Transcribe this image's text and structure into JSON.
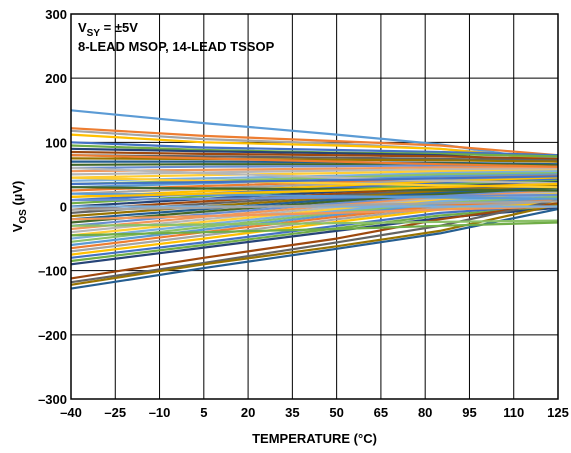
{
  "chart_data": {
    "type": "line",
    "xlabel": "TEMPERATURE (°C)",
    "ylabel": "VOS (µV)",
    "ylabel_parts": {
      "base": "V",
      "sub": "OS",
      "rest": " (µV)"
    },
    "annotation": {
      "line1": {
        "base": "V",
        "sub": "SY",
        "rest": " = ±5V"
      },
      "line2": "8-LEAD MSOP, 14-LEAD TSSOP"
    },
    "x_ticks": [
      -40,
      -25,
      -10,
      5,
      20,
      35,
      50,
      65,
      80,
      95,
      110,
      125
    ],
    "y_ticks": [
      -300,
      -200,
      -100,
      0,
      100,
      200,
      300
    ],
    "x_tick_labels": [
      "–40",
      "–25",
      "–10",
      "5",
      "20",
      "35",
      "50",
      "65",
      "80",
      "95",
      "110",
      "125"
    ],
    "y_tick_labels": [
      "–300",
      "–200",
      "–100",
      "0",
      "100",
      "200",
      "300"
    ],
    "xlim": [
      -40,
      125
    ],
    "ylim": [
      -300,
      300
    ],
    "grid": true,
    "x": [
      -40,
      5,
      50,
      85,
      125
    ],
    "colors": [
      "#5b9bd5",
      "#ed7d31",
      "#a5a5a5",
      "#ffc000",
      "#4472c4",
      "#70ad47",
      "#264478",
      "#9e480e",
      "#636363",
      "#997300",
      "#255e91",
      "#43682b",
      "#698ed0",
      "#f1975a",
      "#b7b7b7",
      "#ffcd33",
      "#7cafdd",
      "#8cc168"
    ],
    "series": [
      {
        "values": [
          150,
          130,
          112,
          97,
          70
        ]
      },
      {
        "values": [
          122,
          110,
          102,
          95,
          80
        ]
      },
      {
        "values": [
          118,
          105,
          98,
          90,
          75
        ]
      },
      {
        "values": [
          112,
          100,
          95,
          90,
          72
        ]
      },
      {
        "values": [
          100,
          92,
          88,
          85,
          80
        ]
      },
      {
        "values": [
          95,
          88,
          84,
          82,
          78
        ]
      },
      {
        "values": [
          90,
          86,
          83,
          80,
          70
        ]
      },
      {
        "values": [
          85,
          82,
          80,
          78,
          74
        ]
      },
      {
        "values": [
          80,
          78,
          76,
          74,
          72
        ]
      },
      {
        "values": [
          75,
          74,
          73,
          72,
          70
        ]
      },
      {
        "values": [
          70,
          70,
          69,
          68,
          66
        ]
      },
      {
        "values": [
          65,
          66,
          66,
          67,
          64
        ]
      },
      {
        "values": [
          60,
          62,
          63,
          64,
          62
        ]
      },
      {
        "values": [
          55,
          57,
          59,
          61,
          60
        ]
      },
      {
        "values": [
          50,
          53,
          56,
          58,
          58
        ]
      },
      {
        "values": [
          45,
          49,
          52,
          55,
          56
        ]
      },
      {
        "values": [
          40,
          44,
          48,
          52,
          55
        ]
      },
      {
        "values": [
          35,
          40,
          45,
          50,
          52
        ]
      },
      {
        "values": [
          30,
          36,
          42,
          47,
          50
        ]
      },
      {
        "values": [
          25,
          32,
          38,
          44,
          48
        ]
      },
      {
        "values": [
          20,
          28,
          35,
          41,
          46
        ]
      },
      {
        "values": [
          15,
          24,
          32,
          39,
          44
        ]
      },
      {
        "values": [
          10,
          20,
          29,
          36,
          42
        ]
      },
      {
        "values": [
          5,
          16,
          26,
          34,
          40
        ]
      },
      {
        "values": [
          0,
          12,
          23,
          31,
          38
        ]
      },
      {
        "values": [
          -5,
          8,
          20,
          29,
          36
        ]
      },
      {
        "values": [
          -10,
          4,
          17,
          26,
          34
        ]
      },
      {
        "values": [
          -15,
          0,
          14,
          24,
          32
        ]
      },
      {
        "values": [
          -20,
          -4,
          11,
          21,
          30
        ]
      },
      {
        "values": [
          -25,
          -8,
          8,
          19,
          28
        ]
      },
      {
        "values": [
          -30,
          -12,
          5,
          16,
          26
        ]
      },
      {
        "values": [
          -35,
          -16,
          2,
          14,
          24
        ]
      },
      {
        "values": [
          -40,
          -20,
          -1,
          12,
          22
        ]
      },
      {
        "values": [
          -45,
          -24,
          -4,
          10,
          20
        ]
      },
      {
        "values": [
          -50,
          -28,
          -7,
          8,
          18
        ]
      },
      {
        "values": [
          -55,
          -32,
          -10,
          5,
          15
        ]
      },
      {
        "values": [
          -60,
          -36,
          -13,
          3,
          12
        ]
      },
      {
        "values": [
          -65,
          -40,
          -16,
          1,
          10
        ]
      },
      {
        "values": [
          -70,
          -45,
          -20,
          -2,
          8
        ]
      },
      {
        "values": [
          -75,
          -50,
          -24,
          -5,
          5
        ]
      },
      {
        "values": [
          -80,
          -56,
          -30,
          -10,
          2
        ]
      },
      {
        "values": [
          -85,
          -60,
          -34,
          -14,
          0
        ]
      },
      {
        "values": [
          -90,
          -64,
          -38,
          -18,
          -2
        ]
      },
      {
        "values": [
          -112,
          -80,
          -50,
          -20,
          5
        ]
      },
      {
        "values": [
          -118,
          -88,
          -56,
          -30,
          10
        ]
      },
      {
        "values": [
          -122,
          -90,
          -62,
          -38,
          3
        ]
      },
      {
        "values": [
          -128,
          -96,
          -66,
          -42,
          -4
        ]
      },
      {
        "values": [
          30,
          28,
          27,
          26,
          25
        ]
      },
      {
        "values": [
          10,
          12,
          14,
          16,
          18
        ]
      },
      {
        "values": [
          -20,
          -15,
          -10,
          -5,
          0
        ]
      },
      {
        "values": [
          60,
          52,
          45,
          40,
          36
        ]
      },
      {
        "values": [
          45,
          40,
          36,
          33,
          30
        ]
      },
      {
        "values": [
          0,
          0,
          0,
          0,
          0
        ]
      },
      {
        "values": [
          -30,
          -28,
          -26,
          -24,
          -22
        ]
      },
      {
        "values": [
          20,
          18,
          16,
          14,
          12
        ]
      },
      {
        "values": [
          80,
          75,
          70,
          66,
          62
        ]
      },
      {
        "values": [
          -5,
          -2,
          2,
          5,
          8
        ]
      },
      {
        "values": [
          15,
          20,
          25,
          30,
          35
        ]
      },
      {
        "values": [
          35,
          38,
          41,
          44,
          47
        ]
      },
      {
        "values": [
          -45,
          -40,
          -35,
          -30,
          -25
        ]
      }
    ]
  }
}
